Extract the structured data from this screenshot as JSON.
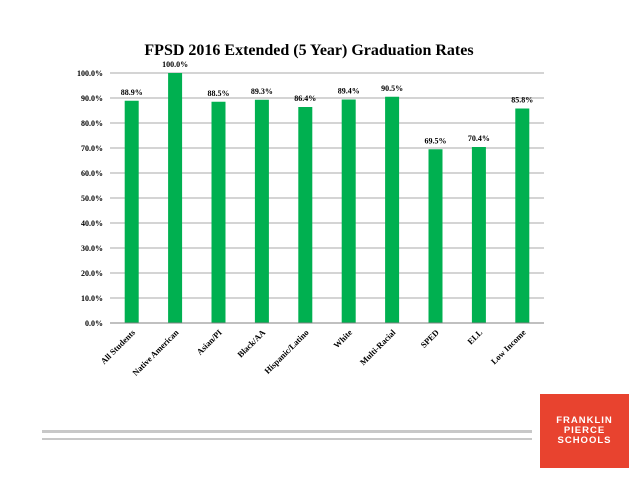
{
  "slide": {
    "logo_lines": [
      "FRANKLIN",
      "PIERCE",
      "SCHOOLS"
    ],
    "logo_color": "#e8432f"
  },
  "chart_data": {
    "type": "bar",
    "title": "FPSD 2016 Extended (5 Year) Graduation Rates",
    "categories": [
      "All Students",
      "Native American",
      "Asian/PI",
      "Black/AA",
      "Hispanic/Latino",
      "White",
      "Multi-Racial",
      "SPED",
      "ELL",
      "Low Income"
    ],
    "values": [
      88.9,
      100.0,
      88.5,
      89.3,
      86.4,
      89.4,
      90.5,
      69.5,
      70.4,
      85.8
    ],
    "data_labels": [
      "88.9%",
      "100.0%",
      "88.5%",
      "89.3%",
      "86.4%",
      "89.4%",
      "90.5%",
      "69.5%",
      "70.4%",
      "85.8%"
    ],
    "ylim": [
      0,
      100
    ],
    "yticks": [
      "0.0%",
      "10.0%",
      "20.0%",
      "30.0%",
      "40.0%",
      "50.0%",
      "60.0%",
      "70.0%",
      "80.0%",
      "90.0%",
      "100.0%"
    ],
    "bar_color": "#00b050",
    "grid": true,
    "xlabel": "",
    "ylabel": ""
  }
}
